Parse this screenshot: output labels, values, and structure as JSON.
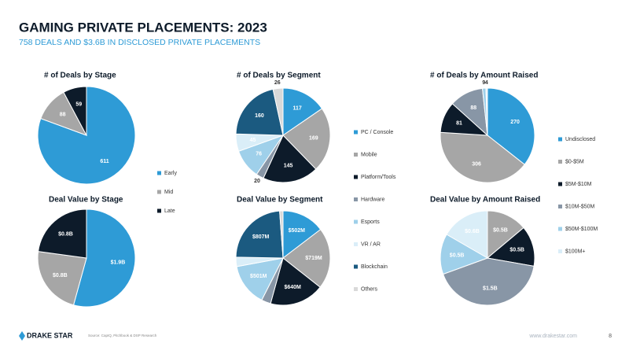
{
  "header": {
    "title": "GAMING PRIVATE PLACEMENTS: 2023",
    "subtitle": "758 DEALS AND $3.6B IN DISCLOSED PRIVATE PLACEMENTS"
  },
  "footer": {
    "brand": "DRAKE STAR",
    "source": "Source: CapIQ, Pitchbook & DSP Research",
    "website": "www.drakestar.com",
    "page": "8"
  },
  "chart_data": [
    {
      "type": "pie",
      "title": "# of Deals by Stage",
      "categories": [
        "Early",
        "Mid",
        "Late"
      ],
      "values": [
        611,
        88,
        59
      ],
      "colors": [
        "#2e9bd6",
        "#a6a6a6",
        "#0d1b2a"
      ]
    },
    {
      "type": "pie",
      "title": "Deal Value by Stage",
      "categories": [
        "Early",
        "Mid",
        "Late"
      ],
      "values": [
        1.9,
        0.8,
        0.8
      ],
      "value_labels": [
        "$1.9B",
        "$0.8B",
        "$0.8B"
      ],
      "colors": [
        "#2e9bd6",
        "#a6a6a6",
        "#0d1b2a"
      ]
    },
    {
      "type": "pie",
      "title": "# of Deals by Segment",
      "categories": [
        "PC / Console",
        "Mobile",
        "Platform/Tools",
        "Hardware",
        "Esports",
        "VR / AR",
        "Blockchain",
        "Others"
      ],
      "values": [
        117,
        169,
        145,
        20,
        76,
        45,
        160,
        26
      ],
      "colors": [
        "#2e9bd6",
        "#a6a6a6",
        "#0d1b2a",
        "#8896a6",
        "#9fd0ea",
        "#daeef8",
        "#1b5a80",
        "#d9d9d9"
      ]
    },
    {
      "type": "pie",
      "title": "Deal Value by Segment",
      "categories": [
        "PC / Console",
        "Mobile",
        "Platform/Tools",
        "Hardware",
        "Esports",
        "VR / AR",
        "Blockchain",
        "Others"
      ],
      "values": [
        502,
        719,
        640,
        110,
        501,
        110,
        807,
        40
      ],
      "value_labels": [
        "$502M",
        "$719M",
        "$640M",
        null,
        "$501M",
        null,
        "$807M",
        null
      ],
      "colors": [
        "#2e9bd6",
        "#a6a6a6",
        "#0d1b2a",
        "#8896a6",
        "#9fd0ea",
        "#daeef8",
        "#1b5a80",
        "#d9d9d9"
      ]
    },
    {
      "type": "pie",
      "title": "# of Deals by Amount Raised",
      "categories": [
        "Undisclosed",
        "$0-$5M",
        "$5M-$10M",
        "$10M-$50M",
        "$50M-$100M",
        "$100M+"
      ],
      "values": [
        270,
        306,
        81,
        88,
        9,
        4
      ],
      "colors": [
        "#2e9bd6",
        "#a6a6a6",
        "#0d1b2a",
        "#8896a6",
        "#9fd0ea",
        "#daeef8"
      ]
    },
    {
      "type": "pie",
      "title": "Deal Value by Amount Raised",
      "categories": [
        "Undisclosed",
        "$0-$5M",
        "$5M-$10M",
        "$10M-$50M",
        "$50M-$100M",
        "$100M+"
      ],
      "values": [
        0,
        0.5,
        0.5,
        1.5,
        0.5,
        0.6
      ],
      "value_labels": [
        null,
        "$0.5B",
        "$0.5B",
        "$1.5B",
        "$0.5B",
        "$0.6B"
      ],
      "colors": [
        "#2e9bd6",
        "#a6a6a6",
        "#0d1b2a",
        "#8896a6",
        "#9fd0ea",
        "#daeef8"
      ]
    }
  ]
}
